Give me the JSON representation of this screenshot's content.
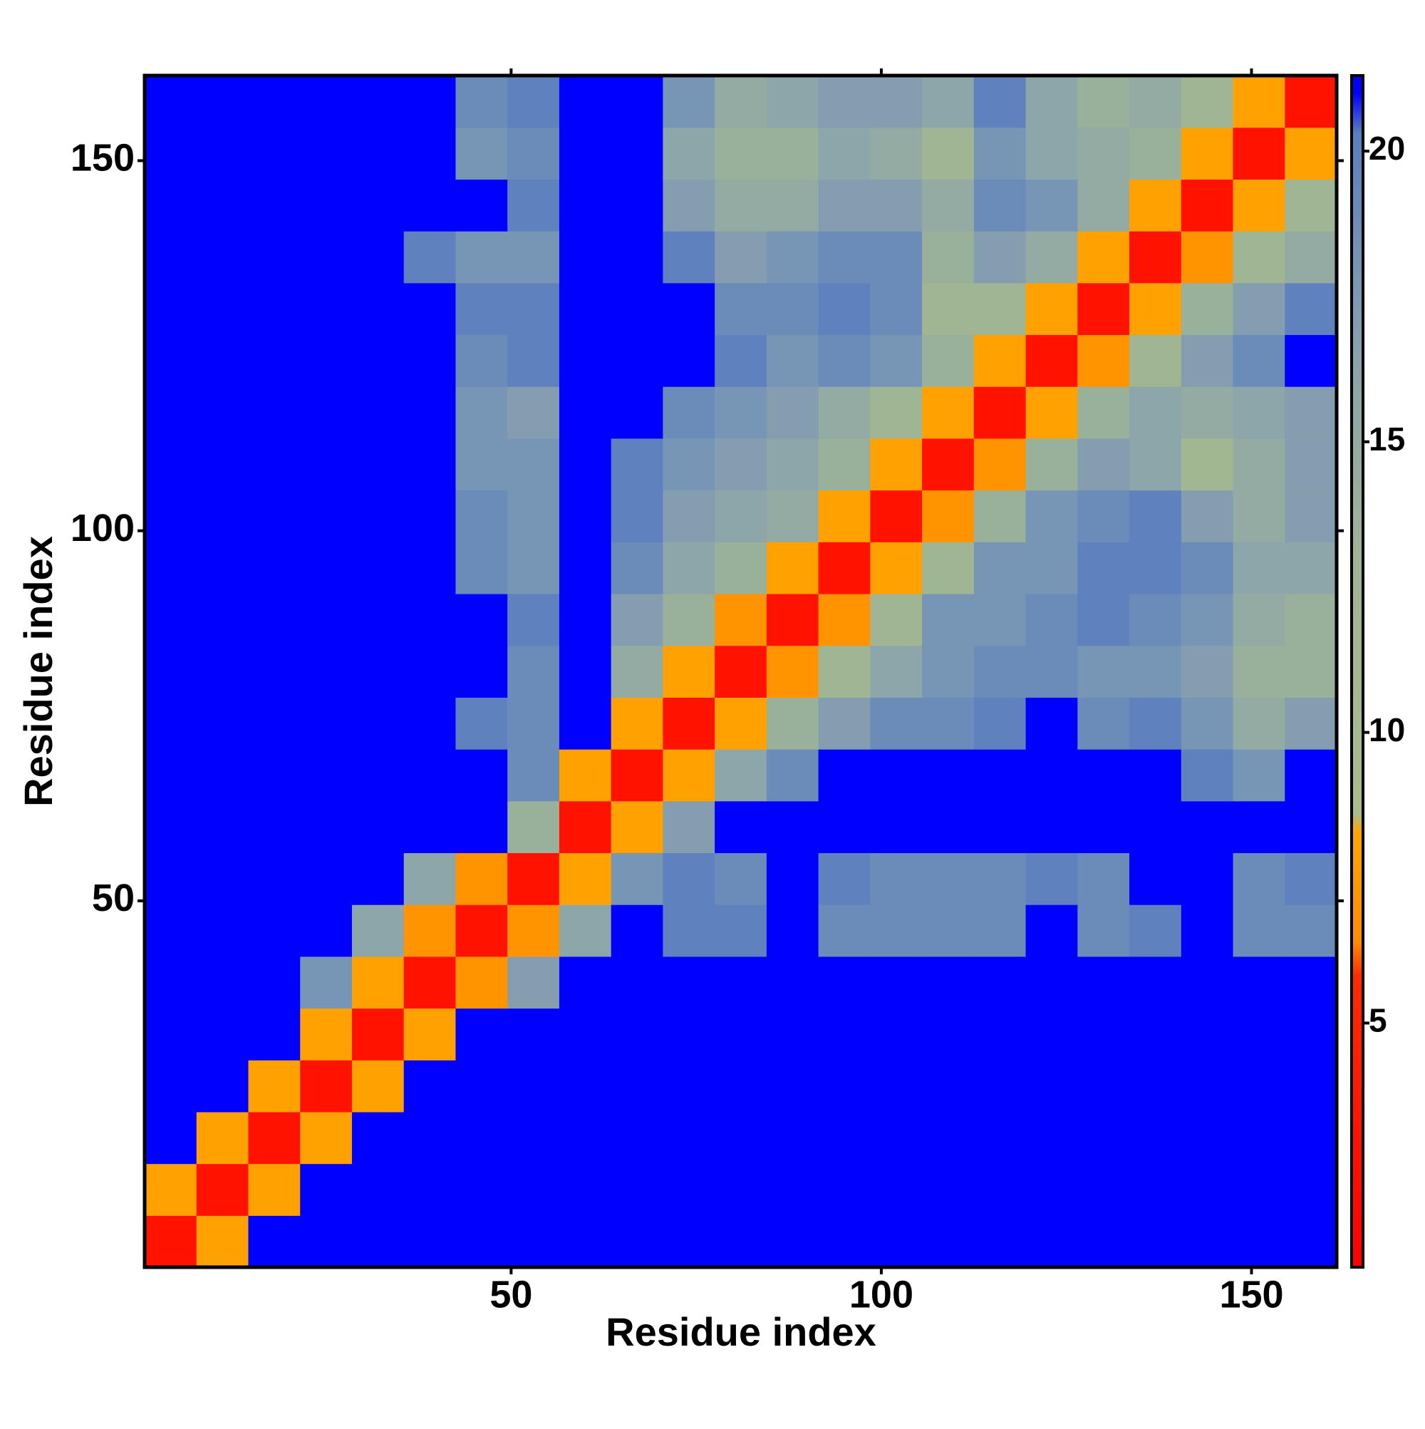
{
  "chart_data": {
    "type": "heatmap",
    "x_label": "Residue index",
    "y_label": "Residue index",
    "x": [
      4,
      11,
      18,
      25,
      32,
      39,
      46,
      53,
      60,
      67,
      74,
      81,
      88,
      95,
      102,
      109,
      116,
      123,
      130,
      137,
      144,
      151,
      158
    ],
    "y": [
      4,
      11,
      18,
      25,
      32,
      39,
      46,
      53,
      60,
      67,
      74,
      81,
      88,
      95,
      102,
      109,
      116,
      123,
      130,
      137,
      144,
      151,
      158
    ],
    "values": [
      [
        3,
        8,
        21,
        21,
        21,
        21,
        21,
        21,
        21,
        21,
        21,
        21,
        21,
        21,
        21,
        21,
        21,
        21,
        21,
        21,
        21,
        21,
        21
      ],
      [
        8,
        3,
        8,
        21,
        21,
        21,
        21,
        21,
        21,
        21,
        21,
        21,
        21,
        21,
        21,
        21,
        21,
        21,
        21,
        21,
        21,
        21,
        21
      ],
      [
        21,
        8,
        3,
        8,
        21,
        21,
        21,
        21,
        21,
        21,
        21,
        21,
        21,
        21,
        21,
        21,
        21,
        21,
        21,
        21,
        21,
        21,
        21
      ],
      [
        21,
        21,
        8,
        3,
        8,
        21,
        21,
        21,
        21,
        21,
        21,
        21,
        21,
        21,
        21,
        21,
        21,
        21,
        21,
        21,
        21,
        21,
        21
      ],
      [
        21,
        21,
        21,
        8,
        3,
        8,
        21,
        21,
        21,
        21,
        21,
        21,
        21,
        21,
        21,
        21,
        21,
        21,
        21,
        21,
        21,
        21,
        21
      ],
      [
        21,
        21,
        21,
        18,
        8,
        3,
        7,
        17,
        21,
        21,
        21,
        21,
        21,
        21,
        21,
        21,
        21,
        21,
        21,
        21,
        21,
        21,
        21
      ],
      [
        21,
        21,
        21,
        21,
        16,
        7,
        3,
        7,
        16,
        21,
        20,
        20,
        21,
        19,
        19,
        19,
        19,
        21,
        19,
        20,
        21,
        19,
        19
      ],
      [
        21,
        21,
        21,
        21,
        21,
        16,
        7,
        3,
        8,
        18,
        20,
        19,
        21,
        20,
        19,
        19,
        19,
        20,
        19,
        21,
        21,
        19,
        20
      ],
      [
        21,
        21,
        21,
        21,
        21,
        21,
        21,
        14,
        3,
        8,
        17,
        21,
        21,
        21,
        21,
        21,
        21,
        21,
        21,
        21,
        21,
        21,
        21
      ],
      [
        21,
        21,
        21,
        21,
        21,
        21,
        21,
        19,
        8,
        3,
        8,
        16,
        19,
        21,
        21,
        21,
        21,
        21,
        21,
        21,
        20,
        18,
        21
      ],
      [
        21,
        21,
        21,
        21,
        21,
        21,
        20,
        19,
        21,
        8,
        3,
        8,
        14,
        17,
        19,
        19,
        20,
        21,
        19,
        20,
        18,
        15,
        17
      ],
      [
        21,
        21,
        21,
        21,
        21,
        21,
        21,
        19,
        21,
        15,
        8,
        3,
        7,
        13,
        16,
        18,
        19,
        19,
        18,
        18,
        17,
        14,
        14
      ],
      [
        21,
        21,
        21,
        21,
        21,
        21,
        21,
        20,
        21,
        17,
        14,
        7,
        3,
        7,
        13,
        18,
        18,
        19,
        20,
        19,
        18,
        15,
        14
      ],
      [
        21,
        21,
        21,
        21,
        21,
        21,
        19,
        18,
        21,
        19,
        16,
        14,
        8,
        3,
        8,
        13,
        18,
        18,
        20,
        20,
        19,
        16,
        16
      ],
      [
        21,
        21,
        21,
        21,
        21,
        21,
        19,
        18,
        21,
        20,
        17,
        16,
        15,
        8,
        3,
        7,
        14,
        18,
        19,
        20,
        17,
        15,
        17
      ],
      [
        21,
        21,
        21,
        21,
        21,
        21,
        18,
        18,
        21,
        20,
        18,
        17,
        16,
        14,
        8,
        3,
        7,
        14,
        17,
        16,
        12,
        15,
        17
      ],
      [
        21,
        21,
        21,
        21,
        21,
        21,
        18,
        17,
        21,
        21,
        19,
        18,
        17,
        15,
        13,
        8,
        3,
        8,
        14,
        16,
        15,
        16,
        17
      ],
      [
        21,
        21,
        21,
        21,
        21,
        21,
        19,
        20,
        21,
        21,
        21,
        20,
        18,
        19,
        18,
        14,
        8,
        3,
        7,
        13,
        17,
        19,
        21
      ],
      [
        21,
        21,
        21,
        21,
        21,
        21,
        20,
        20,
        21,
        21,
        21,
        19,
        19,
        20,
        19,
        13,
        13,
        8,
        3,
        8,
        14,
        17,
        20
      ],
      [
        21,
        21,
        21,
        21,
        21,
        20,
        18,
        18,
        21,
        21,
        20,
        17,
        18,
        19,
        19,
        14,
        17,
        15,
        8,
        3,
        7,
        13,
        15
      ],
      [
        21,
        21,
        21,
        21,
        21,
        21,
        21,
        20,
        21,
        21,
        17,
        15,
        15,
        17,
        17,
        15,
        19,
        18,
        15,
        8,
        3,
        8,
        13
      ],
      [
        21,
        21,
        21,
        21,
        21,
        21,
        18,
        19,
        21,
        21,
        16,
        14,
        14,
        16,
        15,
        13,
        18,
        16,
        15,
        14,
        8,
        3,
        8
      ],
      [
        21,
        21,
        21,
        21,
        21,
        21,
        19,
        20,
        21,
        21,
        18,
        15,
        16,
        17,
        17,
        16,
        20,
        16,
        14,
        15,
        13,
        8,
        3
      ]
    ],
    "cell_size": 7,
    "xlim": [
      0.5,
      161.5
    ],
    "ylim": [
      0.5,
      161.5
    ],
    "xticks": [
      50,
      100,
      150
    ],
    "yticks": [
      50,
      100,
      150
    ],
    "colorbar": {
      "lim": [
        0.8,
        21.3
      ],
      "ticks": [
        5,
        10,
        15,
        20
      ]
    },
    "colorscale": [
      [
        0.8,
        "#ff0000"
      ],
      [
        5.8,
        "#ff2a00"
      ],
      [
        6.4,
        "#ff8c00"
      ],
      [
        8.3,
        "#ffa500"
      ],
      [
        8.6,
        "#a9bc8c"
      ],
      [
        13,
        "#9fb594"
      ],
      [
        16.5,
        "#8aa3ad"
      ],
      [
        20.3,
        "#5b7fbf"
      ],
      [
        21,
        "#0000ff"
      ],
      [
        21.3,
        "#0000ff"
      ]
    ]
  }
}
